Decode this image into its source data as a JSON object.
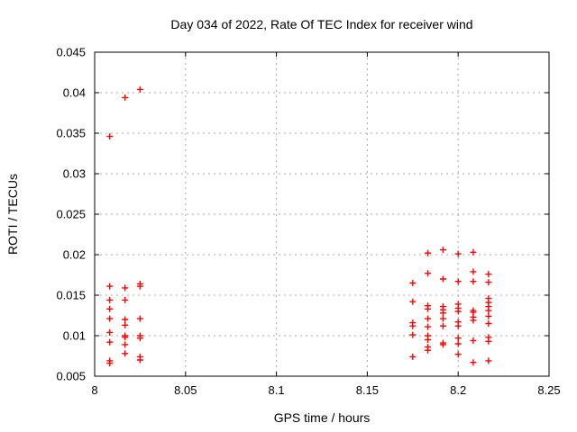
{
  "chart_data": {
    "type": "scatter",
    "title": "Day 034 of 2022, Rate Of TEC Index for receiver wind",
    "xlabel": "GPS time / hours",
    "ylabel": "ROTI / TECUs",
    "xlim": [
      8.0,
      8.25
    ],
    "ylim": [
      0.005,
      0.045
    ],
    "x_ticks": {
      "values": [
        8.0,
        8.05,
        8.1,
        8.15,
        8.2,
        8.25
      ],
      "labels": [
        "8",
        "8.05",
        "8.1",
        "8.15",
        "8.2",
        "8.25"
      ]
    },
    "y_ticks": {
      "values": [
        0.005,
        0.01,
        0.015,
        0.02,
        0.025,
        0.03,
        0.035,
        0.04,
        0.045
      ],
      "labels": [
        "0.005",
        "0.01",
        "0.015",
        "0.02",
        "0.025",
        "0.03",
        "0.035",
        "0.04",
        "0.045"
      ]
    },
    "grid": true,
    "legend": "none",
    "marker": "plus",
    "colors": {
      "marker": "#ff0000",
      "grid": "#a8a8a8",
      "axis": "#000000",
      "background": "#ffffff"
    },
    "series": [
      {
        "name": "ROTI",
        "points": [
          [
            8.0083,
            0.0346
          ],
          [
            8.0083,
            0.0161
          ],
          [
            8.0083,
            0.0144
          ],
          [
            8.0083,
            0.0133
          ],
          [
            8.0083,
            0.0121
          ],
          [
            8.0083,
            0.0104
          ],
          [
            8.0083,
            0.0092
          ],
          [
            8.0083,
            0.0069
          ],
          [
            8.0083,
            0.0066
          ],
          [
            8.0167,
            0.0394
          ],
          [
            8.0167,
            0.0159
          ],
          [
            8.0167,
            0.0144
          ],
          [
            8.0167,
            0.012
          ],
          [
            8.0167,
            0.0113
          ],
          [
            8.0167,
            0.01
          ],
          [
            8.0167,
            0.0098
          ],
          [
            8.0167,
            0.0089
          ],
          [
            8.0167,
            0.0078
          ],
          [
            8.025,
            0.0404
          ],
          [
            8.025,
            0.0164
          ],
          [
            8.025,
            0.0161
          ],
          [
            8.025,
            0.0121
          ],
          [
            8.025,
            0.01
          ],
          [
            8.025,
            0.0097
          ],
          [
            8.025,
            0.0074
          ],
          [
            8.025,
            0.007
          ],
          [
            8.175,
            0.0165
          ],
          [
            8.175,
            0.0142
          ],
          [
            8.175,
            0.0116
          ],
          [
            8.175,
            0.0112
          ],
          [
            8.175,
            0.0101
          ],
          [
            8.175,
            0.0074
          ],
          [
            8.1833,
            0.0202
          ],
          [
            8.1833,
            0.0177
          ],
          [
            8.1833,
            0.0137
          ],
          [
            8.1833,
            0.0133
          ],
          [
            8.1833,
            0.0121
          ],
          [
            8.1833,
            0.0111
          ],
          [
            8.1833,
            0.01
          ],
          [
            8.1833,
            0.0095
          ],
          [
            8.1833,
            0.0086
          ],
          [
            8.1833,
            0.0082
          ],
          [
            8.1917,
            0.0206
          ],
          [
            8.1917,
            0.017
          ],
          [
            8.1917,
            0.0136
          ],
          [
            8.1917,
            0.0132
          ],
          [
            8.1917,
            0.0128
          ],
          [
            8.1917,
            0.0121
          ],
          [
            8.1917,
            0.0112
          ],
          [
            8.1917,
            0.0091
          ],
          [
            8.1917,
            0.0089
          ],
          [
            8.2,
            0.0201
          ],
          [
            8.2,
            0.0167
          ],
          [
            8.2,
            0.0139
          ],
          [
            8.2,
            0.0134
          ],
          [
            8.2,
            0.013
          ],
          [
            8.2,
            0.0117
          ],
          [
            8.2,
            0.0112
          ],
          [
            8.2,
            0.0097
          ],
          [
            8.2,
            0.009
          ],
          [
            8.2,
            0.0077
          ],
          [
            8.2083,
            0.0203
          ],
          [
            8.2083,
            0.0179
          ],
          [
            8.2083,
            0.0167
          ],
          [
            8.2083,
            0.0131
          ],
          [
            8.2083,
            0.0129
          ],
          [
            8.2083,
            0.0123
          ],
          [
            8.2083,
            0.0119
          ],
          [
            8.2083,
            0.0094
          ],
          [
            8.2083,
            0.0067
          ],
          [
            8.2167,
            0.0176
          ],
          [
            8.2167,
            0.0166
          ],
          [
            8.2167,
            0.0146
          ],
          [
            8.2167,
            0.0141
          ],
          [
            8.2167,
            0.0136
          ],
          [
            8.2167,
            0.0131
          ],
          [
            8.2167,
            0.0124
          ],
          [
            8.2167,
            0.0115
          ],
          [
            8.2167,
            0.0098
          ],
          [
            8.2167,
            0.0093
          ],
          [
            8.2167,
            0.0069
          ]
        ]
      }
    ]
  }
}
